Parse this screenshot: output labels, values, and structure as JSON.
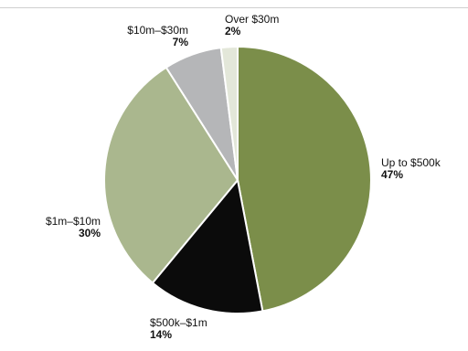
{
  "chart_data": {
    "type": "pie",
    "start_angle_deg": 0,
    "direction": "clockwise",
    "slices": [
      {
        "label": "Up to $500k",
        "value": 47,
        "display": "47%",
        "color": "#7b8e4a"
      },
      {
        "label": "$500k–$1m",
        "value": 14,
        "display": "14%",
        "color": "#0b0b0b"
      },
      {
        "label": "$1m–$10m",
        "value": 30,
        "display": "30%",
        "color": "#aab78e"
      },
      {
        "label": "$10m–$30m",
        "value": 7,
        "display": "7%",
        "color": "#b5b6b8"
      },
      {
        "label": "Over $30m",
        "value": 2,
        "display": "2%",
        "color": "#e3e7d9"
      }
    ]
  }
}
